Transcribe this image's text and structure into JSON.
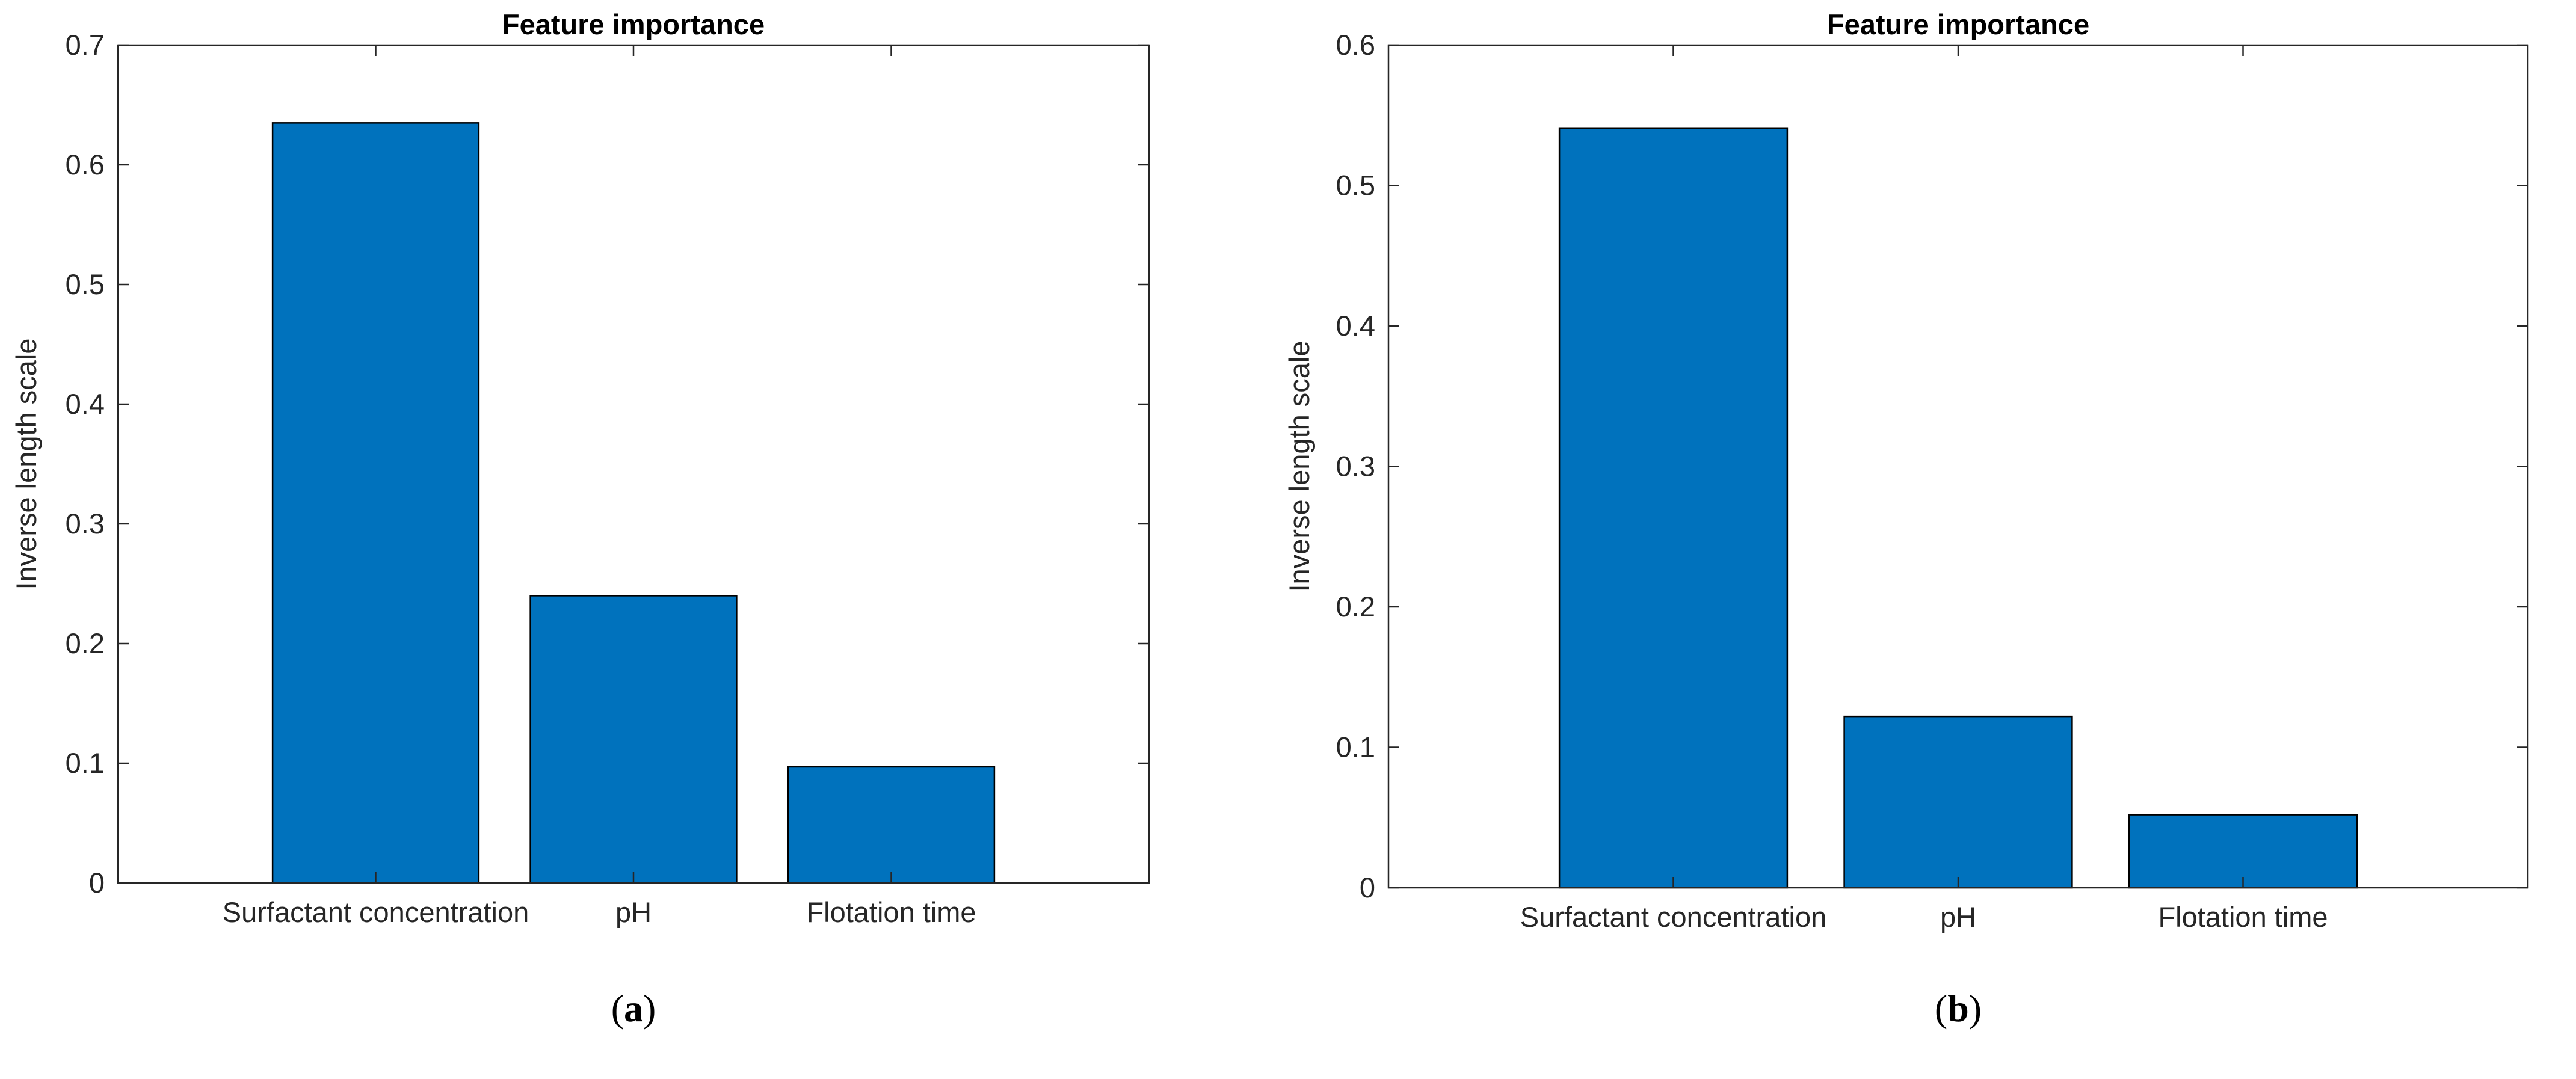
{
  "chart_data": [
    {
      "type": "bar",
      "panel": "a",
      "title": "Feature importance",
      "categories": [
        "Surfactant concentration",
        "pH",
        "Flotation time"
      ],
      "values": [
        0.635,
        0.24,
        0.097
      ],
      "xlabel": "",
      "ylabel": "Inverse length scale",
      "ylim": [
        0,
        0.7
      ],
      "yticks": [
        0,
        0.1,
        0.2,
        0.3,
        0.4,
        0.5,
        0.6,
        0.7
      ],
      "ytick_labels": [
        "0",
        "0.1",
        "0.2",
        "0.3",
        "0.4",
        "0.5",
        "0.6",
        "0.7"
      ],
      "xlim": [
        0,
        4
      ],
      "grid": false,
      "bar_color": "#0072BD",
      "caption": {
        "open": "(",
        "letter": "a",
        "close": ")"
      }
    },
    {
      "type": "bar",
      "panel": "b",
      "title": "Feature importance",
      "categories": [
        "Surfactant concentration",
        "pH",
        "Flotation time"
      ],
      "values": [
        0.541,
        0.122,
        0.052
      ],
      "xlabel": "",
      "ylabel": "Inverse length scale",
      "ylim": [
        0,
        0.6
      ],
      "yticks": [
        0,
        0.1,
        0.2,
        0.3,
        0.4,
        0.5,
        0.6
      ],
      "ytick_labels": [
        "0",
        "0.1",
        "0.2",
        "0.3",
        "0.4",
        "0.5",
        "0.6"
      ],
      "xlim": [
        0,
        4
      ],
      "grid": false,
      "bar_color": "#0072BD",
      "caption": {
        "open": "(",
        "letter": "b",
        "close": ")"
      }
    }
  ]
}
